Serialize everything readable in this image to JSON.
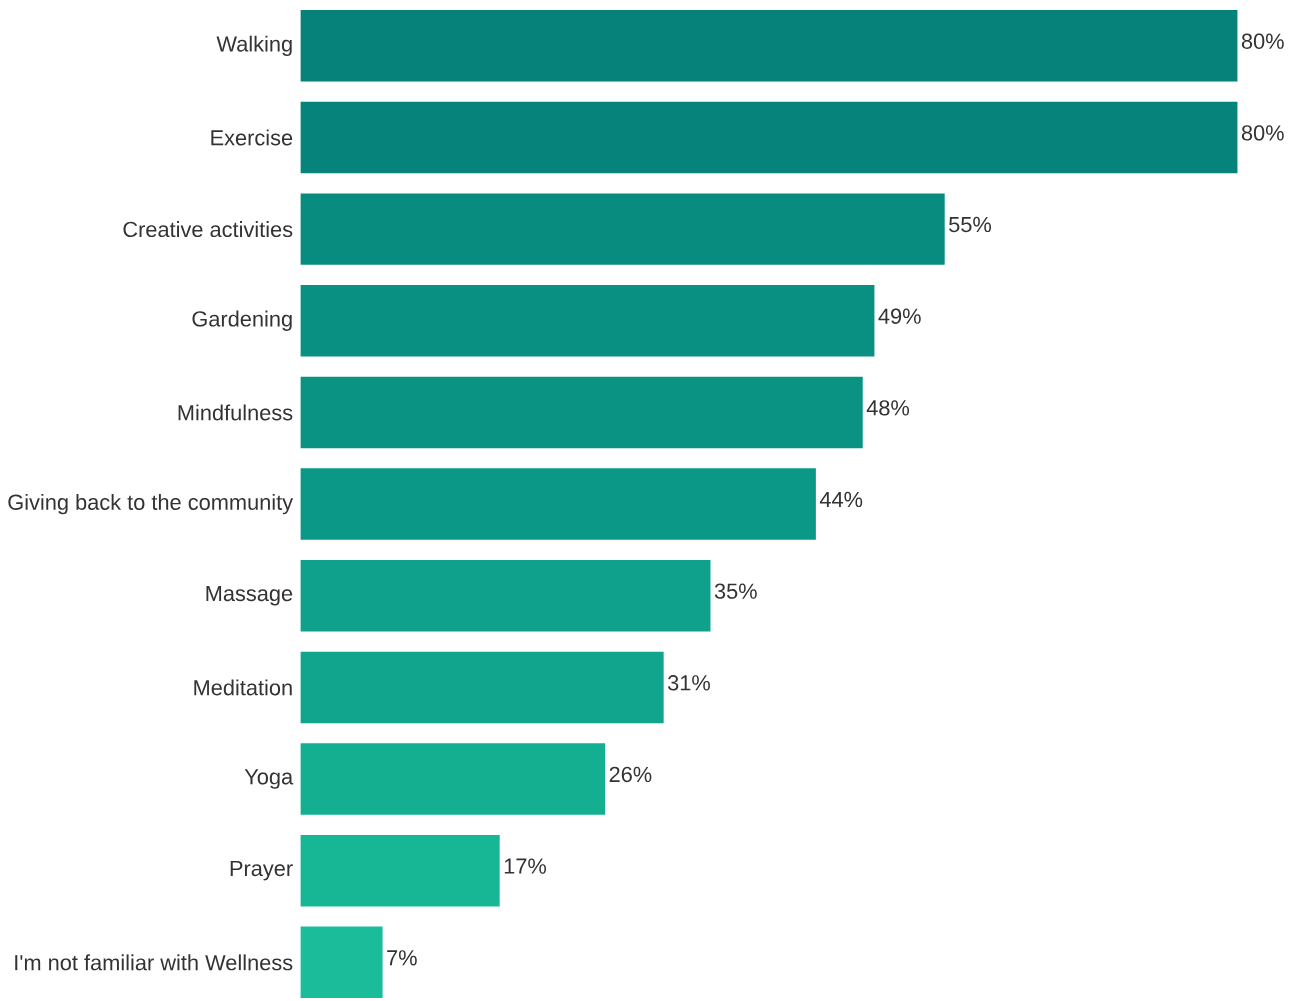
{
  "chart_data": {
    "type": "bar",
    "orientation": "horizontal",
    "tick_labels": "y",
    "categories": [
      "Walking",
      "Exercise",
      "Creative activities",
      "Gardening",
      "Mindfulness",
      "Giving back to the community",
      "Massage",
      "Meditation",
      "Yoga",
      "Prayer",
      "I'm not familiar with Wellness"
    ],
    "values": [
      80,
      80,
      55,
      49,
      48,
      44,
      35,
      31,
      26,
      17,
      7
    ],
    "value_labels": [
      "80%",
      "80%",
      "55%",
      "49%",
      "48%",
      "44%",
      "35%",
      "31%",
      "26%",
      "17%",
      "7%"
    ],
    "colors": [
      "#06827A",
      "#06847B",
      "#088C7F",
      "#099082",
      "#0A9383",
      "#0C9887",
      "#0FA18B",
      "#11A58D",
      "#14AE91",
      "#17B695",
      "#1ABC99"
    ]
  }
}
